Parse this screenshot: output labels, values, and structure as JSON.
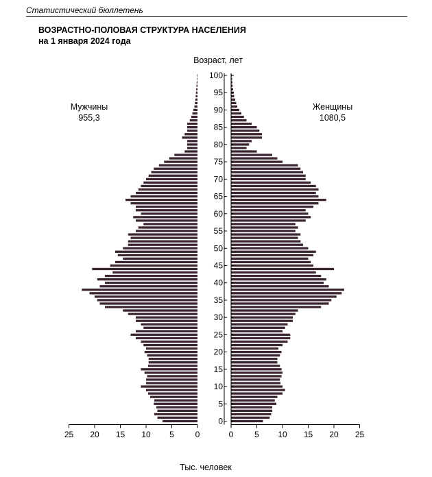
{
  "header": {
    "running_title": "Статистический бюллетень"
  },
  "figure": {
    "title_line1": "ВОЗРАСТНО-ПОЛОВАЯ СТРУКТУРА НАСЕЛЕНИЯ",
    "title_line2": "на 1 января 2024 года"
  },
  "chart_data": {
    "type": "bar",
    "subtype": "population-pyramid",
    "title": "ВОЗРАСТНО-ПОЛОВАЯ СТРУКТУРА НАСЕЛЕНИЯ на 1 января 2024 года",
    "age_axis_label": "Возраст, лет",
    "xlabel": "Тыс. человек",
    "xlim": [
      0,
      25
    ],
    "x_ticks": [
      25,
      20,
      15,
      10,
      5,
      0
    ],
    "age_ticks": [
      0,
      5,
      10,
      15,
      20,
      25,
      30,
      35,
      40,
      45,
      50,
      55,
      60,
      65,
      70,
      75,
      80,
      85,
      90,
      95,
      100
    ],
    "ages": [
      0,
      1,
      2,
      3,
      4,
      5,
      6,
      7,
      8,
      9,
      10,
      11,
      12,
      13,
      14,
      15,
      16,
      17,
      18,
      19,
      20,
      21,
      22,
      23,
      24,
      25,
      26,
      27,
      28,
      29,
      30,
      31,
      32,
      33,
      34,
      35,
      36,
      37,
      38,
      39,
      40,
      41,
      42,
      43,
      44,
      45,
      46,
      47,
      48,
      49,
      50,
      51,
      52,
      53,
      54,
      55,
      56,
      57,
      58,
      59,
      60,
      61,
      62,
      63,
      64,
      65,
      66,
      67,
      68,
      69,
      70,
      71,
      72,
      73,
      74,
      75,
      76,
      77,
      78,
      79,
      80,
      81,
      82,
      83,
      84,
      85,
      86,
      87,
      88,
      89,
      90,
      91,
      92,
      93,
      94,
      95,
      96,
      97,
      98,
      99,
      100
    ],
    "bar_color": "#3a2530",
    "series": [
      {
        "name": "Мужчины",
        "total": "955,3",
        "values": [
          6.8,
          7.8,
          8.4,
          7.8,
          8.0,
          8.5,
          8.4,
          9.2,
          9.6,
          10.0,
          11.0,
          10.0,
          10.0,
          9.8,
          10.3,
          11.0,
          9.6,
          9.5,
          9.5,
          9.8,
          10.3,
          10.0,
          10.5,
          11.0,
          12.0,
          13.0,
          12.0,
          10.5,
          11.0,
          12.0,
          12.0,
          13.5,
          14.5,
          18.0,
          19.0,
          19.5,
          20.0,
          21.0,
          22.5,
          19.0,
          18.0,
          19.5,
          18.0,
          16.5,
          20.5,
          17.0,
          16.0,
          14.5,
          15.5,
          16.0,
          14.5,
          13.5,
          13.5,
          13.0,
          13.5,
          12.0,
          11.5,
          10.5,
          12.0,
          12.5,
          11.0,
          12.0,
          12.0,
          13.0,
          14.0,
          13.0,
          12.0,
          11.5,
          11.0,
          10.5,
          10.0,
          9.5,
          9.0,
          8.5,
          7.5,
          6.5,
          5.5,
          4.5,
          2.5,
          2.0,
          2.0,
          2.0,
          3.0,
          2.5,
          2.0,
          2.0,
          2.0,
          1.5,
          1.2,
          1.0,
          0.8,
          0.6,
          0.5,
          0.4,
          0.35,
          0.3,
          0.25,
          0.2,
          0.15,
          0.1,
          0.1
        ]
      },
      {
        "name": "Женщины",
        "total": "1080,5",
        "values": [
          6.2,
          7.5,
          7.8,
          8.0,
          8.0,
          8.8,
          8.5,
          9.0,
          10.0,
          10.5,
          10.0,
          9.6,
          9.5,
          9.8,
          10.0,
          9.8,
          9.5,
          9.0,
          9.0,
          9.5,
          9.8,
          9.2,
          10.0,
          11.0,
          11.5,
          11.5,
          10.0,
          10.5,
          11.0,
          12.0,
          12.0,
          12.5,
          13.0,
          17.5,
          19.0,
          19.5,
          20.5,
          21.5,
          22.0,
          19.0,
          18.0,
          18.5,
          17.5,
          16.5,
          20.0,
          16.0,
          15.5,
          15.0,
          16.0,
          16.5,
          15.0,
          14.0,
          13.5,
          13.0,
          13.5,
          12.5,
          13.0,
          12.5,
          14.5,
          15.5,
          15.0,
          14.5,
          16.0,
          17.0,
          18.5,
          17.0,
          16.5,
          17.0,
          16.5,
          15.5,
          14.5,
          14.5,
          14.0,
          13.5,
          13.0,
          10.0,
          9.0,
          8.0,
          5.0,
          3.0,
          3.5,
          4.0,
          6.0,
          6.0,
          5.5,
          5.0,
          4.0,
          3.0,
          2.5,
          2.0,
          1.6,
          1.2,
          1.0,
          0.8,
          0.6,
          0.5,
          0.4,
          0.3,
          0.25,
          0.2,
          0.15
        ]
      }
    ]
  }
}
